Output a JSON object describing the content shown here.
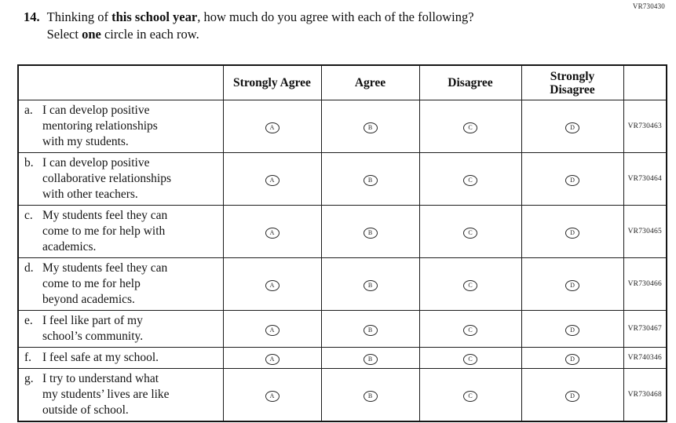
{
  "page_code": "VR730430",
  "question": {
    "number": "14.",
    "stem": [
      "Thinking of ",
      "this school year",
      ", how much do you agree with each of the following?"
    ],
    "instruction": [
      "Select ",
      "one",
      " circle in each row."
    ]
  },
  "table": {
    "columns": [
      "Strongly Agree",
      "Agree",
      "Disagree",
      "Strongly\nDisagree"
    ],
    "option_letters": [
      "A",
      "B",
      "C",
      "D"
    ],
    "option_names": [
      "strongly-agree",
      "agree",
      "disagree",
      "strongly-disagree"
    ],
    "rows": [
      {
        "letter": "a.",
        "text": "I can develop positive\nmentoring relationships\nwith my students.",
        "code": "VR730463"
      },
      {
        "letter": "b.",
        "text": "I can develop positive\ncollaborative relationships\nwith other teachers.",
        "code": "VR730464"
      },
      {
        "letter": "c.",
        "text": "My students feel they can\ncome to me for help with\nacademics.",
        "code": "VR730465"
      },
      {
        "letter": "d.",
        "text": "My students feel they can\ncome to me for help\nbeyond academics.",
        "code": "VR730466"
      },
      {
        "letter": "e.",
        "text": "I feel like part of my\nschool’s community.",
        "code": "VR730467"
      },
      {
        "letter": "f.",
        "text": "I feel safe at my school.",
        "code": "VR740346"
      },
      {
        "letter": "g.",
        "text": "I try to understand what\nmy students’ lives are like\noutside of school.",
        "code": "VR730468"
      }
    ]
  }
}
